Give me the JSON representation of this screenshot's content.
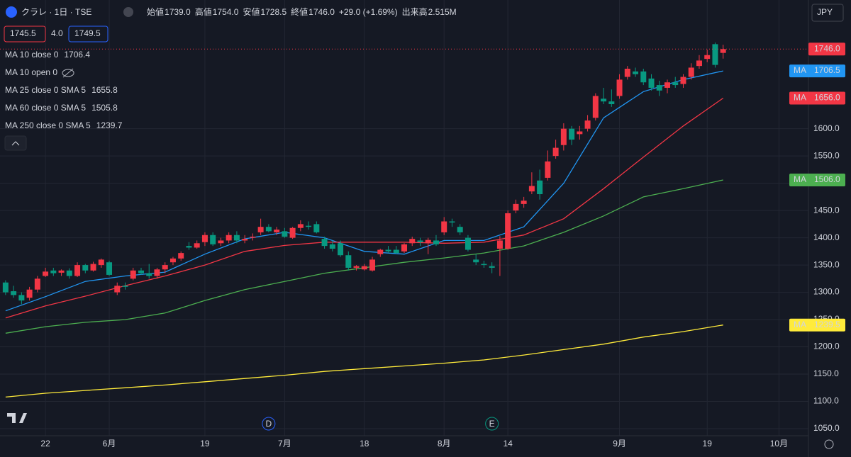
{
  "header": {
    "symbol": "クラレ · 1日 · TSE",
    "ohlc": [
      {
        "label": "始値",
        "value": "1739.0"
      },
      {
        "label": "高値",
        "value": "1754.0"
      },
      {
        "label": "安値",
        "value": "1728.5"
      },
      {
        "label": "終値",
        "value": "1746.0"
      }
    ],
    "change": "+29.0 (+1.69%)",
    "volume_label": "出来高",
    "volume": "2.515M",
    "currency": "JPY"
  },
  "order": {
    "bid": "1745.5",
    "spread": "4.0",
    "ask": "1749.5"
  },
  "chart_data": {
    "type": "candlestick",
    "up_color": "#f23645",
    "down_color": "#089981",
    "open": [
      1318,
      1302,
      1295,
      1290,
      1305,
      1330,
      1340,
      1336,
      1340,
      1330,
      1350,
      1340,
      1350,
      1355,
      1300,
      1312,
      1325,
      1340,
      1335,
      1330,
      1342,
      1355,
      1362,
      1385,
      1382,
      1392,
      1405,
      1390,
      1395,
      1405,
      1395,
      1400,
      1410,
      1420,
      1410,
      1412,
      1400,
      1418,
      1422,
      1425,
      1398,
      1388,
      1390,
      1368,
      1345,
      1342,
      1340,
      1370,
      1378,
      1378,
      1375,
      1390,
      1395,
      1390,
      1395,
      1410,
      1430,
      1420,
      1400,
      1360,
      1352,
      1348,
      1380,
      1380,
      1450,
      1462,
      1485,
      1505,
      1510,
      1550,
      1570,
      1600,
      1590,
      1600,
      1620,
      1655,
      1650,
      1660,
      1695,
      1705,
      1705,
      1692,
      1680,
      1675,
      1685,
      1682,
      1695,
      1715,
      1728,
      1755,
      1739
    ],
    "high": [
      1322,
      1312,
      1300,
      1310,
      1330,
      1345,
      1345,
      1342,
      1344,
      1355,
      1352,
      1356,
      1362,
      1358,
      1318,
      1318,
      1345,
      1345,
      1352,
      1345,
      1355,
      1365,
      1375,
      1392,
      1395,
      1410,
      1410,
      1400,
      1410,
      1412,
      1405,
      1408,
      1435,
      1425,
      1420,
      1418,
      1420,
      1432,
      1430,
      1430,
      1402,
      1395,
      1395,
      1375,
      1350,
      1352,
      1365,
      1380,
      1385,
      1385,
      1390,
      1402,
      1400,
      1400,
      1405,
      1438,
      1435,
      1425,
      1405,
      1370,
      1358,
      1355,
      1403,
      1450,
      1470,
      1475,
      1520,
      1525,
      1560,
      1580,
      1610,
      1605,
      1605,
      1625,
      1665,
      1675,
      1672,
      1700,
      1715,
      1712,
      1710,
      1700,
      1688,
      1690,
      1695,
      1700,
      1720,
      1735,
      1745,
      1758,
      1754
    ],
    "low": [
      1295,
      1290,
      1278,
      1285,
      1300,
      1328,
      1330,
      1330,
      1325,
      1328,
      1335,
      1338,
      1345,
      1330,
      1295,
      1305,
      1322,
      1332,
      1325,
      1325,
      1335,
      1350,
      1358,
      1378,
      1380,
      1385,
      1385,
      1385,
      1390,
      1390,
      1390,
      1395,
      1405,
      1410,
      1405,
      1400,
      1398,
      1412,
      1415,
      1408,
      1380,
      1375,
      1365,
      1340,
      1340,
      1340,
      1338,
      1365,
      1372,
      1370,
      1372,
      1385,
      1385,
      1370,
      1385,
      1405,
      1420,
      1405,
      1375,
      1350,
      1345,
      1335,
      1330,
      1378,
      1445,
      1455,
      1480,
      1470,
      1505,
      1545,
      1560,
      1570,
      1580,
      1595,
      1615,
      1645,
      1640,
      1655,
      1690,
      1695,
      1680,
      1670,
      1660,
      1665,
      1675,
      1675,
      1690,
      1710,
      1722,
      1712,
      1728.5
    ],
    "close": [
      1300,
      1295,
      1285,
      1305,
      1325,
      1338,
      1335,
      1340,
      1330,
      1350,
      1340,
      1352,
      1360,
      1332,
      1312,
      1310,
      1340,
      1335,
      1330,
      1342,
      1350,
      1362,
      1372,
      1382,
      1390,
      1405,
      1388,
      1395,
      1405,
      1395,
      1398,
      1402,
      1420,
      1412,
      1415,
      1402,
      1418,
      1425,
      1420,
      1410,
      1385,
      1380,
      1368,
      1345,
      1348,
      1348,
      1360,
      1378,
      1375,
      1372,
      1388,
      1398,
      1392,
      1396,
      1388,
      1430,
      1428,
      1410,
      1378,
      1355,
      1350,
      1345,
      1395,
      1445,
      1462,
      1468,
      1495,
      1480,
      1540,
      1565,
      1600,
      1580,
      1595,
      1615,
      1660,
      1650,
      1645,
      1690,
      1710,
      1700,
      1685,
      1675,
      1670,
      1685,
      1680,
      1695,
      1712,
      1725,
      1735,
      1717,
      1746
    ],
    "last_label": "1746.0",
    "ylim": [
      1037,
      1836
    ],
    "yticks": [
      {
        "value": 1050,
        "label": "1050.0"
      },
      {
        "value": 1100,
        "label": "1100.0"
      },
      {
        "value": 1150,
        "label": "1150.0"
      },
      {
        "value": 1200,
        "label": "1200.0"
      },
      {
        "value": 1250,
        "label": "1250.0"
      },
      {
        "value": 1300,
        "label": "1300.0"
      },
      {
        "value": 1350,
        "label": "1350.0"
      },
      {
        "value": 1400,
        "label": "1400.0"
      },
      {
        "value": 1450,
        "label": "1450.0"
      },
      {
        "value": 1500,
        "label": "1500.0"
      },
      {
        "value": 1550,
        "label": "1550.0"
      },
      {
        "value": 1600,
        "label": "1600.0"
      }
    ],
    "xlim": [
      -0.7,
      100.7
    ],
    "xticks": [
      {
        "value": 5,
        "label": "22"
      },
      {
        "value": 13,
        "label": "6月"
      },
      {
        "value": 25,
        "label": "19"
      },
      {
        "value": 35,
        "label": "7月"
      },
      {
        "value": 45,
        "label": "18"
      },
      {
        "value": 55,
        "label": "8月"
      },
      {
        "value": 63,
        "label": "14"
      },
      {
        "value": 77,
        "label": "9月"
      },
      {
        "value": 88,
        "label": "19"
      },
      {
        "value": 97,
        "label": "10月"
      }
    ],
    "markers": [
      {
        "label": "D",
        "x": 33,
        "color": "#2962ff"
      },
      {
        "label": "E",
        "x": 61,
        "color": "#089981"
      }
    ],
    "series": [
      {
        "name": "MA 10 close 0",
        "color": "#2196f3",
        "legend_value": "1706.4",
        "axis_tag": "MA",
        "axis_value": "1706.5",
        "x": [
          0,
          5,
          10,
          15,
          20,
          25,
          30,
          35,
          40,
          45,
          50,
          55,
          60,
          65,
          70,
          75,
          80,
          85,
          90
        ],
        "values": [
          1266,
          1292,
          1320,
          1330,
          1337,
          1370,
          1398,
          1410,
          1400,
          1375,
          1370,
          1395,
          1395,
          1420,
          1500,
          1620,
          1668,
          1690,
          1706
        ]
      },
      {
        "name": "MA 10 open 0",
        "color": "#787b86",
        "hidden": true
      },
      {
        "name": "MA 25 close 0 SMA 5",
        "color": "#f23645",
        "legend_value": "1655.8",
        "axis_tag": "MA",
        "axis_value": "1656.0",
        "x": [
          0,
          5,
          10,
          15,
          20,
          25,
          30,
          35,
          40,
          45,
          50,
          55,
          60,
          65,
          70,
          75,
          80,
          85,
          90
        ],
        "values": [
          1253,
          1275,
          1293,
          1312,
          1330,
          1350,
          1375,
          1386,
          1392,
          1392,
          1392,
          1390,
          1392,
          1405,
          1435,
          1490,
          1548,
          1605,
          1656
        ]
      },
      {
        "name": "MA 60 close 0 SMA 5",
        "color": "#4caf50",
        "legend_value": "1505.8",
        "axis_tag": "MA",
        "axis_value": "1506.0",
        "x": [
          0,
          5,
          10,
          15,
          20,
          25,
          30,
          35,
          40,
          45,
          50,
          55,
          60,
          65,
          70,
          75,
          80,
          85,
          90
        ],
        "values": [
          1225,
          1237,
          1245,
          1250,
          1262,
          1285,
          1305,
          1320,
          1335,
          1345,
          1355,
          1363,
          1372,
          1385,
          1410,
          1440,
          1475,
          1490,
          1506
        ]
      },
      {
        "name": "MA 250 close 0 SMA 5",
        "color": "#ffeb3b",
        "legend_value": "1239.7",
        "axis_tag": "MA",
        "axis_value": "1239.5",
        "x": [
          0,
          5,
          10,
          15,
          20,
          25,
          30,
          35,
          40,
          45,
          50,
          55,
          60,
          65,
          70,
          75,
          80,
          85,
          90
        ],
        "values": [
          1108,
          1115,
          1120,
          1125,
          1130,
          1136,
          1142,
          1148,
          1155,
          1160,
          1165,
          1170,
          1176,
          1185,
          1195,
          1205,
          1218,
          1228,
          1240
        ]
      }
    ]
  }
}
